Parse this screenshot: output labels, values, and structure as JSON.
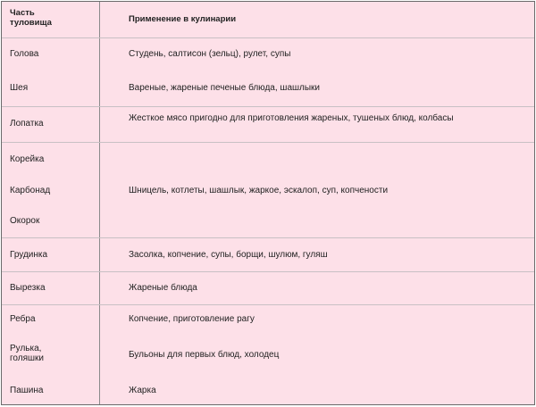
{
  "header": {
    "part": "Часть туловища",
    "use": "Применение в кулинарии"
  },
  "rows": [
    {
      "part": "Голова",
      "use": "Студень, салтисон (зельц), рулет, супы"
    },
    {
      "part": "Шея",
      "use": "Вареные, жареные печеные блюда, шашлыки"
    },
    {
      "part": "Лопатка",
      "use": "Жесткое мясо пригодно для приготовления жареных, тушеных блюд, колбасы"
    },
    {
      "part": "Корейка"
    },
    {
      "part": "Карбонад",
      "use": "Шницель, котлеты, шашлык, жаркое, эскалоп, суп, копчености"
    },
    {
      "part": "Окорок"
    },
    {
      "part": "Грудинка",
      "use": "Засолка, копчение, супы, борщи, шулюм, гуляш"
    },
    {
      "part": "Вырезка",
      "use": "Жареные блюда"
    },
    {
      "part": "Ребра",
      "use": "Копчение, приготовление рагу"
    },
    {
      "part": "Рулька, голяшки",
      "use": "Бульоны для первых блюд, холодец"
    },
    {
      "part": "Пашина",
      "use": "Жарка"
    }
  ],
  "colors": {
    "background": "#fde0e8",
    "border": "#6a6a6a"
  }
}
